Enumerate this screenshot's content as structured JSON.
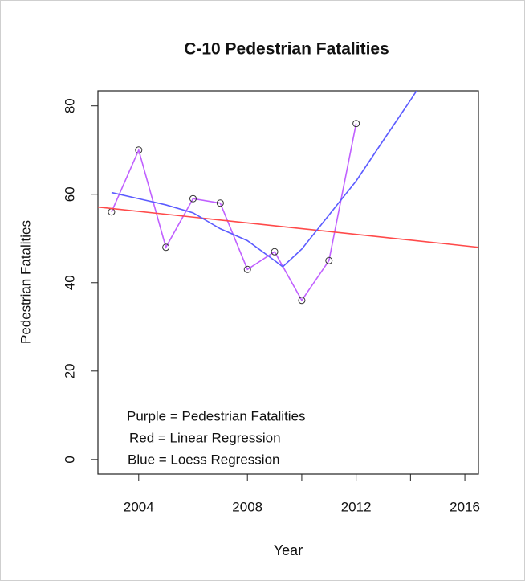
{
  "chart_data": {
    "type": "line",
    "title": "C-10 Pedestrian Fatalities",
    "x_label": "Year",
    "y_label": "Pedestrian Fatalities",
    "annotations": [
      "Purple = Pedestrian Fatalities",
      "Red = Linear Regression",
      "Blue = Loess Regression"
    ],
    "xlim": [
      2002.5,
      2016.5
    ],
    "ylim": [
      -3.3,
      83.4
    ],
    "xticks": [
      2004,
      {
        "value": 2006,
        "label": null
      },
      2008,
      {
        "value": 2010,
        "label": null
      },
      2012,
      {
        "value": 2014,
        "label": null
      },
      2016
    ],
    "yticks": [
      0,
      20,
      40,
      60,
      80
    ],
    "series": [
      {
        "name": "Pedestrian Fatalities",
        "color": "#c060ff",
        "markers": true,
        "x": [
          2003,
          2004,
          2005,
          2006,
          2007,
          2008,
          2009,
          2010,
          2011,
          2012
        ],
        "values": [
          56,
          70,
          48,
          59,
          58,
          43,
          47,
          36,
          45,
          76
        ]
      },
      {
        "name": "Linear Regression",
        "color": "#ff4a4a",
        "markers": false,
        "x": [
          2002.5,
          2016.5
        ],
        "values": [
          57.1,
          48.0
        ]
      },
      {
        "name": "Loess Regression",
        "color": "#5c5cff",
        "markers": false,
        "x": [
          2003,
          2004,
          2005,
          2006,
          2007,
          2008,
          2009,
          2009.3,
          2010,
          2011,
          2012,
          2013,
          2014,
          2014.5
        ],
        "values": [
          60.4,
          59,
          57.6,
          55.8,
          52.2,
          49.5,
          45,
          43.6,
          47.6,
          55.3,
          63,
          72.2,
          81.3,
          86
        ]
      }
    ]
  }
}
